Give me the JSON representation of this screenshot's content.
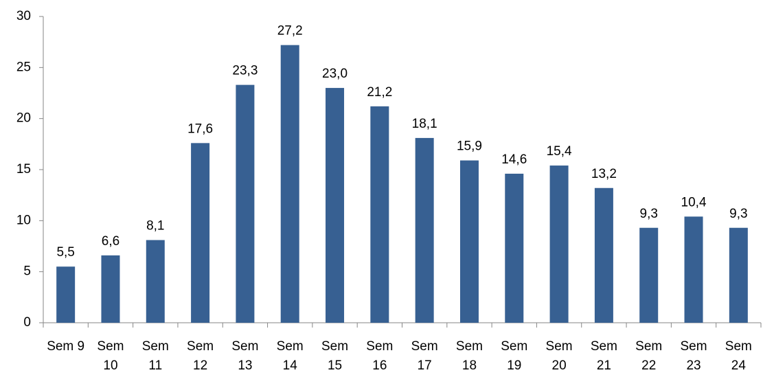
{
  "chart_data": {
    "type": "bar",
    "categories": [
      "Sem 9",
      "Sem 10",
      "Sem 11",
      "Sem 12",
      "Sem 13",
      "Sem 14",
      "Sem 15",
      "Sem 16",
      "Sem 17",
      "Sem 18",
      "Sem 19",
      "Sem 20",
      "Sem 21",
      "Sem 22",
      "Sem 23",
      "Sem 24"
    ],
    "values": [
      5.5,
      6.6,
      8.1,
      17.6,
      23.3,
      27.2,
      23.0,
      21.2,
      18.1,
      15.9,
      14.6,
      15.4,
      13.2,
      9.3,
      10.4,
      9.3
    ],
    "value_labels": [
      "5,5",
      "6,6",
      "8,1",
      "17,6",
      "23,3",
      "27,2",
      "23,0",
      "21,2",
      "18,1",
      "15,9",
      "14,6",
      "15,4",
      "13,2",
      "9,3",
      "10,4",
      "9,3"
    ],
    "color": "#376092",
    "ylim": [
      0,
      30
    ],
    "yticks": [
      0,
      5,
      10,
      15,
      20,
      25,
      30
    ],
    "grid": false
  }
}
